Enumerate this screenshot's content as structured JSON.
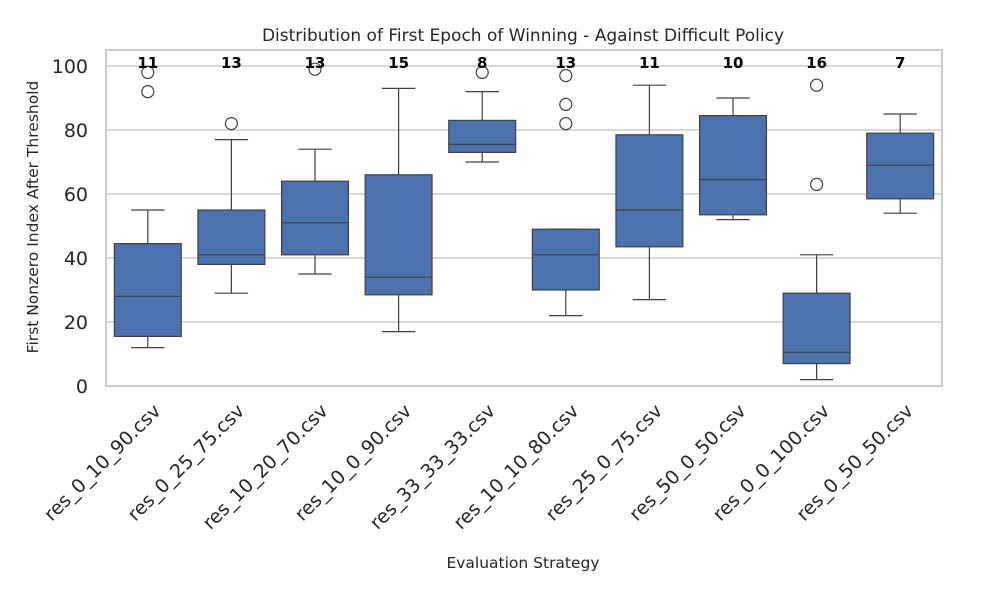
{
  "chart_data": {
    "type": "box",
    "title": "Distribution of First Epoch of Winning - Against Difficult Policy",
    "xlabel": "Evaluation Strategy",
    "ylabel": "First Nonzero Index After Threshold",
    "ylim": [
      0,
      105
    ],
    "yticks": [
      0,
      20,
      40,
      60,
      80,
      100
    ],
    "ytick_labels": [
      "0",
      "20",
      "40",
      "60",
      "80",
      "100"
    ],
    "grid": "horizontal",
    "colors": {
      "box": "#4c72b0",
      "line": "#404040",
      "grid": "#cccccc",
      "frame": "#cccccc"
    },
    "categories": [
      "res_0_10_90.csv",
      "res_0_25_75.csv",
      "res_10_20_70.csv",
      "res_10_0_90.csv",
      "res_33_33_33.csv",
      "res_10_10_80.csv",
      "res_25_0_75.csv",
      "res_50_0_50.csv",
      "res_0_0_100.csv",
      "res_0_50_50.csv"
    ],
    "boxes": [
      {
        "whisker_low": 12,
        "q1": 15.5,
        "median": 28,
        "q3": 44.5,
        "whisker_high": 55,
        "outliers": [
          92,
          98
        ],
        "count": "11"
      },
      {
        "whisker_low": 29,
        "q1": 38,
        "median": 41,
        "q3": 55,
        "whisker_high": 77,
        "outliers": [
          82
        ],
        "count": "13"
      },
      {
        "whisker_low": 35,
        "q1": 41,
        "median": 51,
        "q3": 64,
        "whisker_high": 74,
        "outliers": [
          99
        ],
        "count": "13"
      },
      {
        "whisker_low": 17,
        "q1": 28.5,
        "median": 34,
        "q3": 66,
        "whisker_high": 93,
        "outliers": [],
        "count": "15"
      },
      {
        "whisker_low": 70,
        "q1": 73,
        "median": 75.5,
        "q3": 83,
        "whisker_high": 92,
        "outliers": [
          98
        ],
        "count": "8"
      },
      {
        "whisker_low": 22,
        "q1": 30,
        "median": 41,
        "q3": 49,
        "whisker_high": 49,
        "outliers": [
          82,
          88,
          97
        ],
        "count": "13"
      },
      {
        "whisker_low": 27,
        "q1": 43.5,
        "median": 55,
        "q3": 78.5,
        "whisker_high": 94,
        "outliers": [],
        "count": "11"
      },
      {
        "whisker_low": 52,
        "q1": 53.5,
        "median": 64.5,
        "q3": 84.5,
        "whisker_high": 90,
        "outliers": [],
        "count": "10"
      },
      {
        "whisker_low": 2,
        "q1": 7,
        "median": 10.5,
        "q3": 29,
        "whisker_high": 41,
        "outliers": [
          63,
          94
        ],
        "count": "16"
      },
      {
        "whisker_low": 54,
        "q1": 58.5,
        "median": 69,
        "q3": 79,
        "whisker_high": 85,
        "outliers": [],
        "count": "7"
      }
    ]
  }
}
